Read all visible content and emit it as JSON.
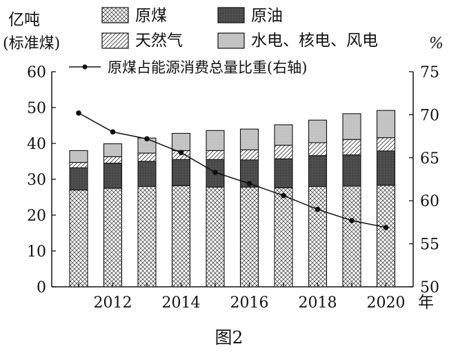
{
  "chart_data": {
    "type": "bar",
    "stacked": true,
    "y_left_label_line1": "亿吨",
    "y_left_label_line2": "(标准煤)",
    "y_right_label": "%",
    "x_unit": "年",
    "caption": "图2",
    "ylim_left": [
      0,
      60
    ],
    "yticks_left": [
      "0",
      "10",
      "20",
      "30",
      "40",
      "50",
      "60"
    ],
    "ylim_right": [
      50,
      75
    ],
    "yticks_right": [
      "50",
      "55",
      "60",
      "65",
      "70",
      "75"
    ],
    "x": [
      2011,
      2012,
      2013,
      2014,
      2015,
      2016,
      2017,
      2018,
      2019,
      2020
    ],
    "x_tick_labels": [
      "",
      "2012",
      "",
      "2014",
      "",
      "2016",
      "",
      "2018",
      "",
      "2020"
    ],
    "series": [
      {
        "name": "原煤",
        "pattern": "crosshatch",
        "values": [
          27.0,
          27.5,
          28.0,
          28.2,
          27.8,
          27.8,
          27.6,
          28.0,
          28.1,
          28.3
        ]
      },
      {
        "name": "原油",
        "pattern": "dark",
        "values": [
          6.2,
          7.0,
          7.0,
          7.3,
          7.7,
          7.6,
          8.1,
          8.6,
          8.7,
          9.6
        ]
      },
      {
        "name": "天然气",
        "pattern": "diagonal",
        "values": [
          1.5,
          1.8,
          2.3,
          2.5,
          2.5,
          2.8,
          3.8,
          3.6,
          4.3,
          3.7
        ]
      },
      {
        "name": "水电、核电、风电",
        "pattern": "grey",
        "values": [
          3.3,
          3.6,
          4.2,
          4.8,
          5.6,
          5.8,
          5.7,
          6.3,
          7.2,
          7.6
        ]
      }
    ],
    "line": {
      "name": "原煤占能源消费总量比重(右轴)",
      "axis": "right",
      "values": [
        70.2,
        68.0,
        67.2,
        65.6,
        63.3,
        62.0,
        60.6,
        59.0,
        57.7,
        56.9
      ]
    },
    "legend_position": "top"
  }
}
